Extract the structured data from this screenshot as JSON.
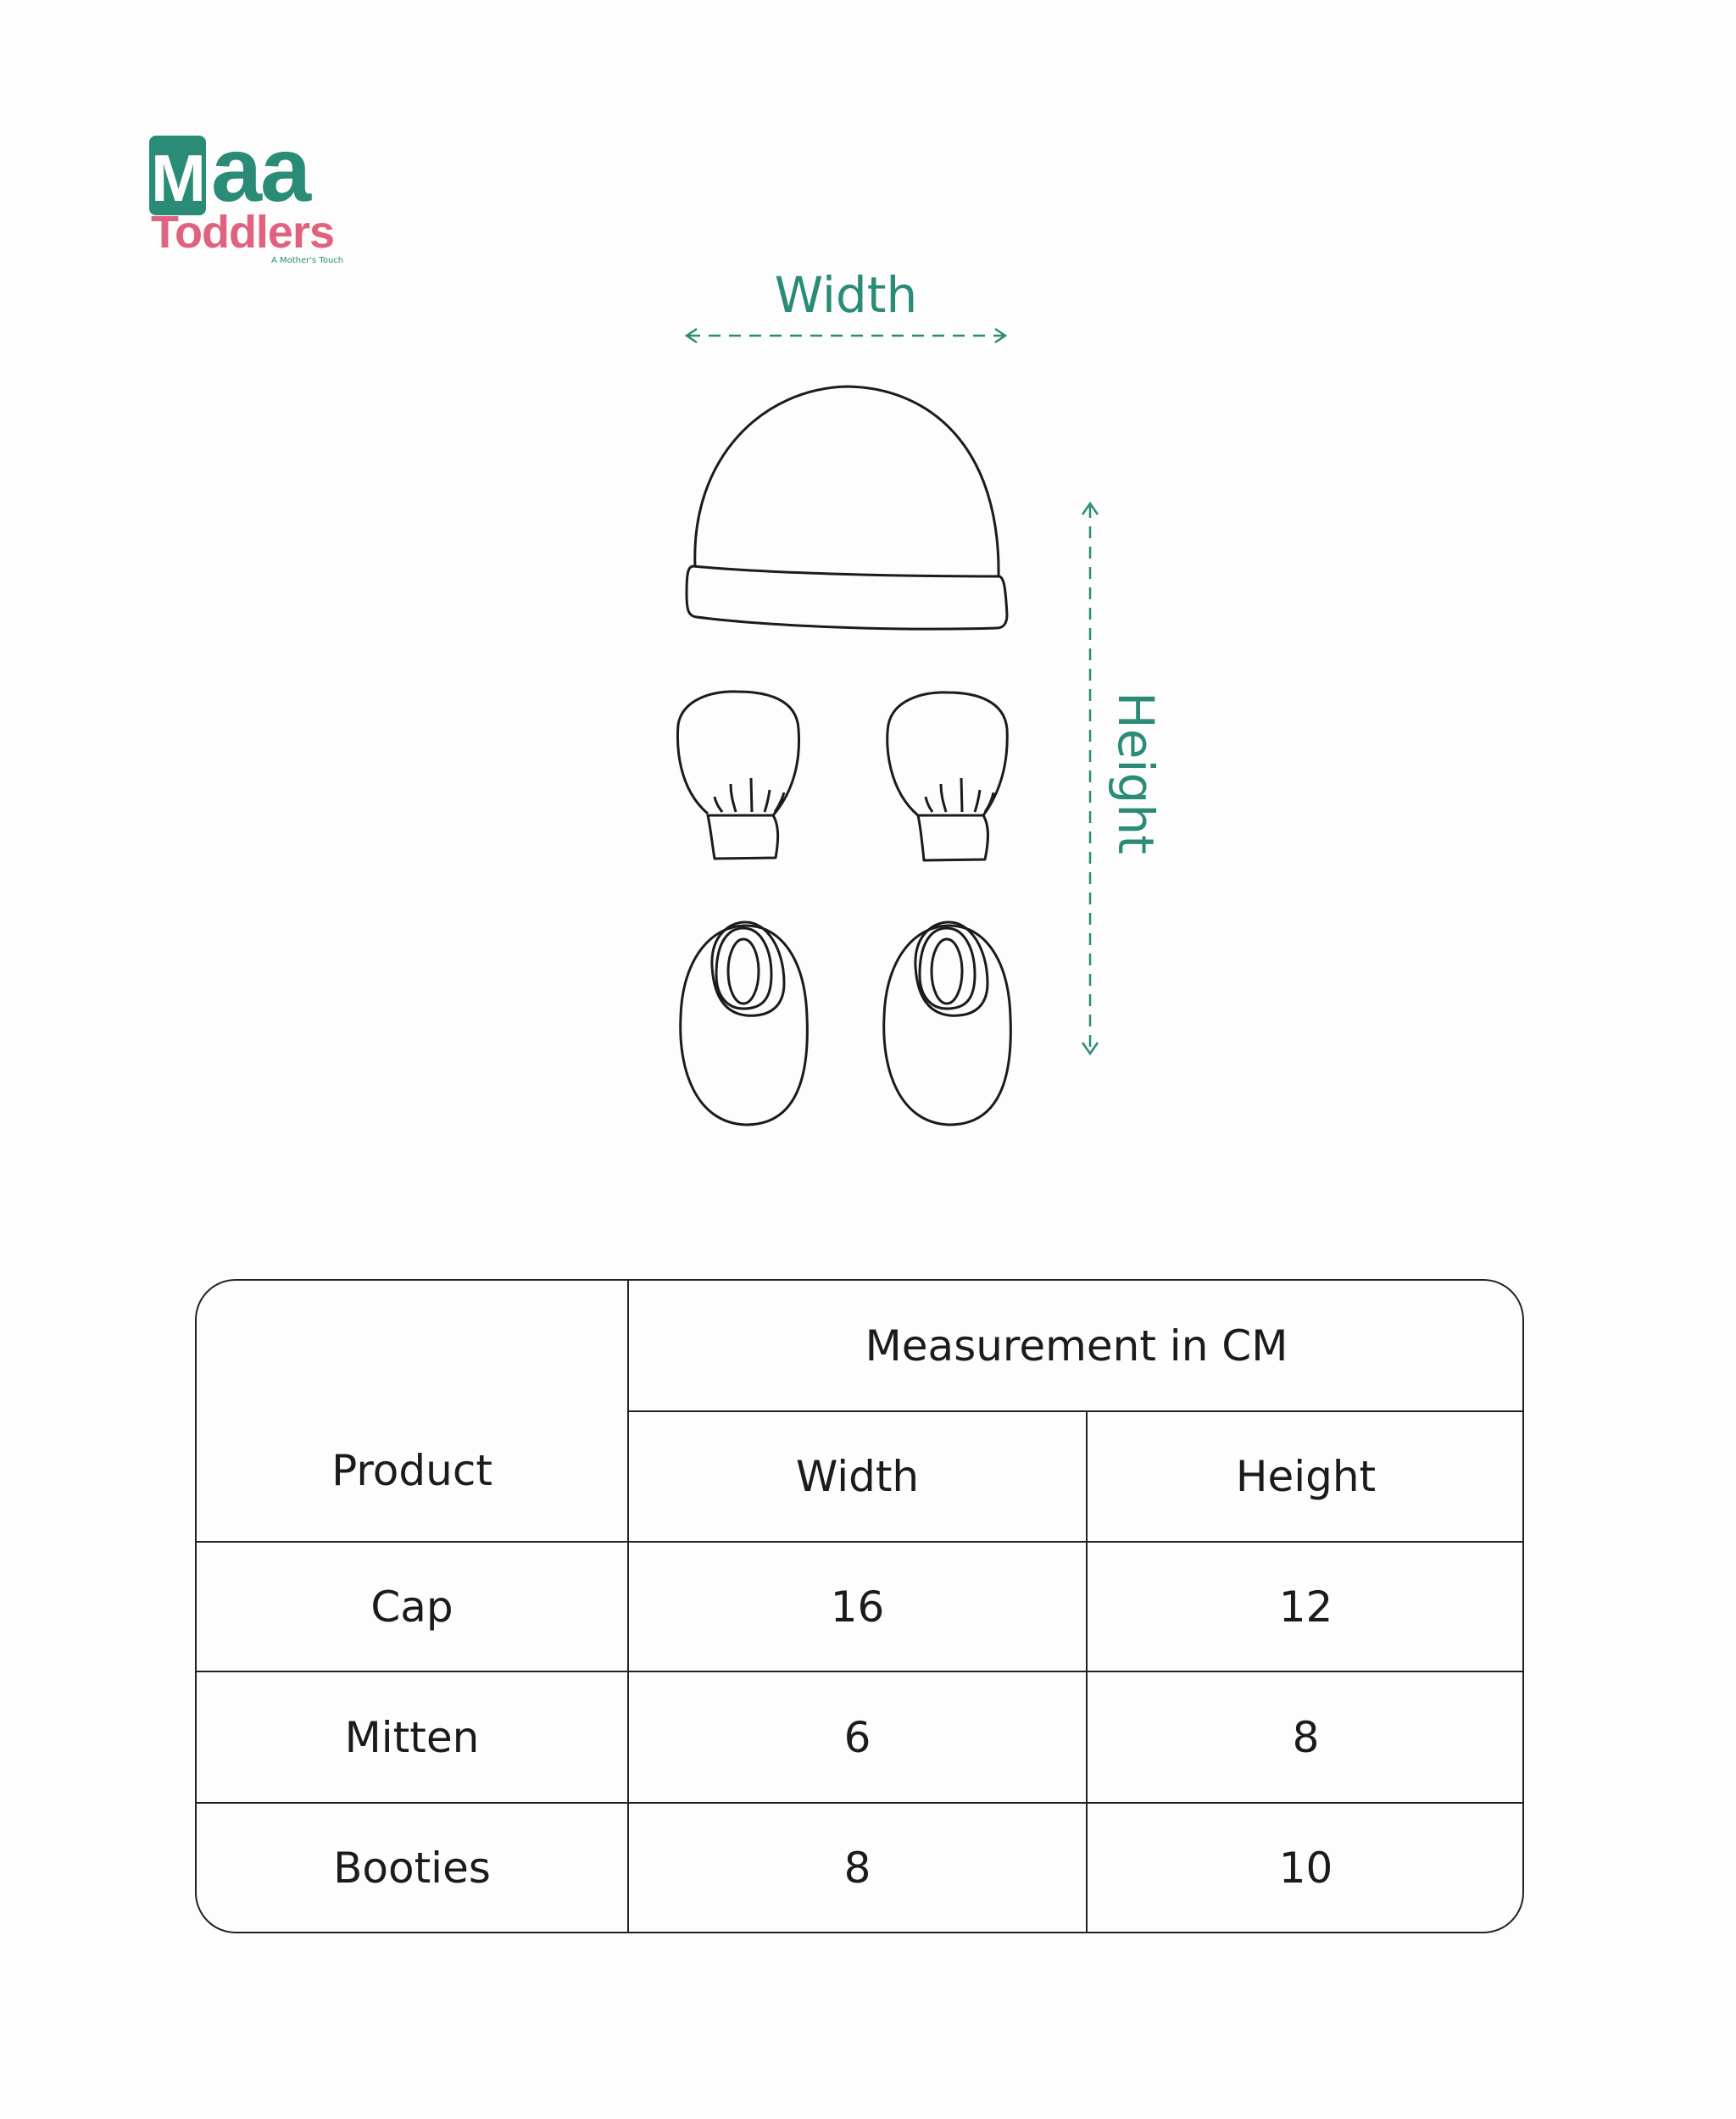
{
  "brand": {
    "name_top": "Maa",
    "name_bottom": "Toddlers",
    "tagline": "A Mother's Touch",
    "colors": {
      "green": "#2a8c76",
      "pink": "#e0627f"
    }
  },
  "diagram": {
    "width_label": "Width",
    "height_label": "Height",
    "items": [
      "cap",
      "mitten-left",
      "mitten-right",
      "bootie-left",
      "bootie-right"
    ]
  },
  "table": {
    "product_header": "Product",
    "group_header": "Measurement in CM",
    "columns": [
      "Width",
      "Height"
    ],
    "rows": [
      {
        "product": "Cap",
        "width": "16",
        "height": "12"
      },
      {
        "product": "Mitten",
        "width": "6",
        "height": "8"
      },
      {
        "product": "Booties",
        "width": "8",
        "height": "10"
      }
    ]
  }
}
